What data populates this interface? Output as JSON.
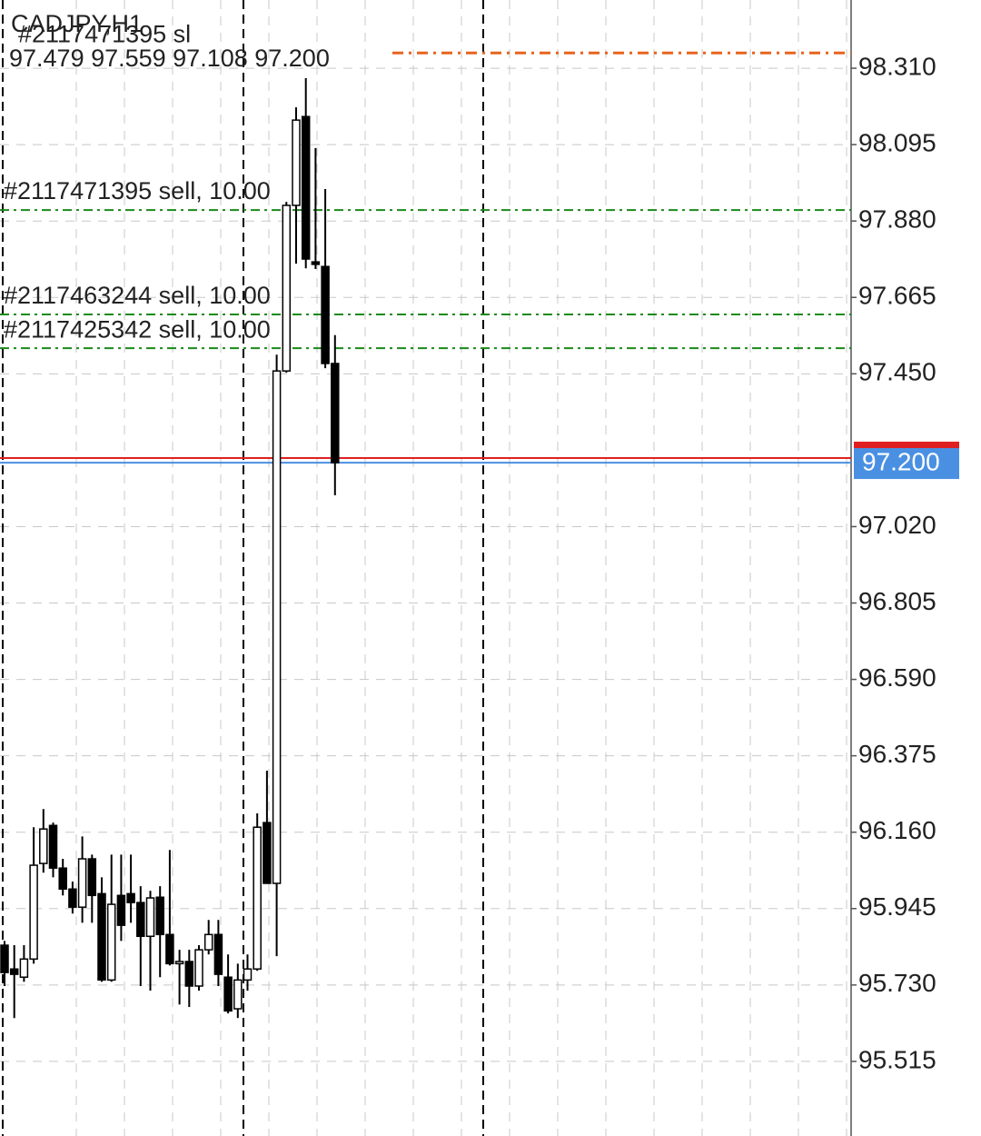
{
  "chart_data": {
    "type": "candlestick",
    "title": "CADJPY,H1",
    "info": "97.479 97.559 97.108 97.200",
    "ylim": [
      95.305,
      98.502
    ],
    "yticks": [
      {
        "value": 98.31,
        "label": "98.310"
      },
      98.095,
      {
        "value": 97.88,
        "label": "97.880"
      },
      97.665,
      {
        "value": 97.45,
        "label": "97.450"
      },
      {
        "value": 97.02,
        "label": "97.020"
      },
      96.805,
      {
        "value": 96.59,
        "label": "96.590"
      },
      96.375,
      {
        "value": 96.16,
        "label": "96.160"
      },
      95.945,
      {
        "value": 95.73,
        "label": "95.730"
      },
      95.515
    ],
    "grid": true,
    "up_color": "#ffffff",
    "down_color": "#000000",
    "open": [
      95.842,
      95.775,
      95.752,
      95.803,
      96.072,
      96.179,
      96.059,
      96.0,
      95.949,
      96.085,
      95.987,
      95.744,
      95.982,
      95.987,
      95.962,
      95.867,
      95.977,
      95.872,
      95.79,
      95.796,
      95.727,
      95.829,
      95.872,
      95.752,
      95.663,
      95.744,
      95.775,
      96.187,
      96.016,
      97.458,
      97.924,
      98.174,
      97.765,
      97.752,
      97.479
    ],
    "high": [
      95.854,
      95.842,
      95.842,
      96.174,
      96.225,
      96.187,
      96.085,
      96.021,
      96.148,
      96.097,
      96.033,
      96.097,
      96.097,
      96.097,
      96.008,
      95.995,
      96.008,
      96.11,
      95.829,
      95.829,
      95.842,
      95.913,
      95.913,
      95.816,
      95.79,
      95.816,
      96.213,
      96.333,
      97.504,
      97.934,
      98.2,
      98.282,
      98.085,
      97.97,
      97.559
    ],
    "low": [
      95.727,
      95.637,
      95.739,
      95.79,
      96.046,
      96.033,
      95.982,
      95.931,
      95.905,
      95.905,
      95.739,
      95.739,
      95.854,
      95.905,
      95.727,
      95.714,
      95.752,
      95.785,
      95.675,
      95.668,
      95.714,
      95.816,
      95.727,
      95.65,
      95.637,
      95.714,
      95.77,
      96.016,
      95.811,
      97.453,
      97.76,
      97.747,
      97.745,
      97.466,
      97.108
    ],
    "close": [
      95.765,
      95.76,
      95.803,
      96.067,
      96.169,
      96.059,
      96.0,
      95.949,
      96.085,
      95.982,
      95.744,
      95.957,
      95.898,
      95.962,
      95.867,
      95.975,
      95.872,
      95.79,
      95.796,
      95.727,
      95.829,
      95.872,
      95.76,
      95.657,
      95.744,
      95.775,
      96.174,
      96.016,
      97.458,
      97.924,
      98.164,
      97.773,
      97.758,
      97.479,
      97.2
    ],
    "levels": [
      {
        "label": "#2117471395 sl",
        "value": 98.353,
        "color": "#e8641e"
      },
      {
        "label": "#2117471395 sell, 10.00",
        "value": 97.911,
        "color": "#1a8a1a"
      },
      {
        "label": "#2117463244 sell, 10.00",
        "value": 97.617,
        "color": "#1a8a1a"
      },
      {
        "label": "#2117425342 sell, 10.00",
        "value": 97.522,
        "color": "#1a8a1a"
      }
    ],
    "ask": {
      "value": 97.213,
      "color": "#e02020"
    },
    "bid": {
      "value": 97.2,
      "label": "97.200",
      "color": "#4a90e2"
    }
  }
}
